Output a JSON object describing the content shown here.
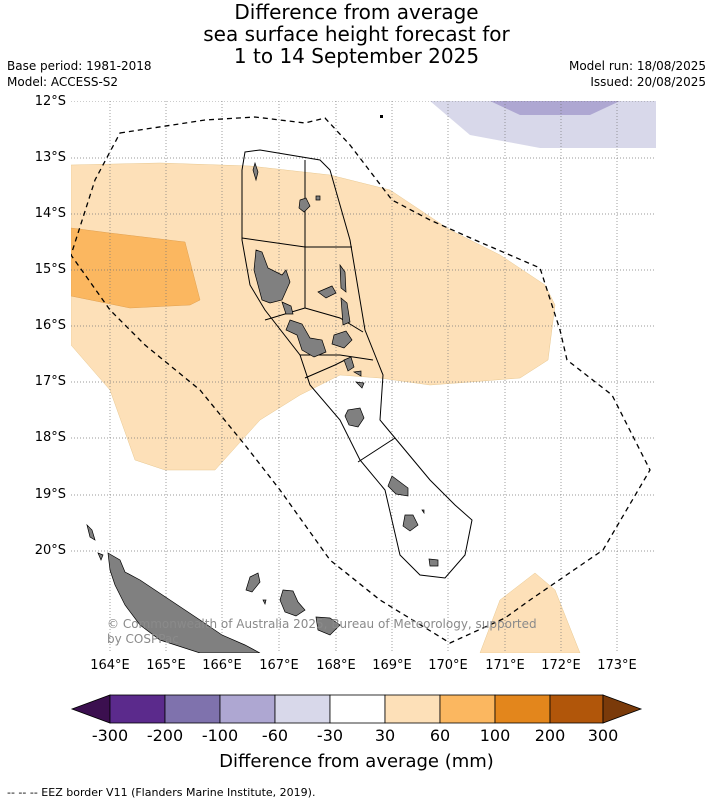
{
  "title": {
    "line1": "Difference from average",
    "line2": "sea surface height forecast for",
    "line3": "1 to 14 September 2025"
  },
  "meta": {
    "base_period": "Base period: 1981-2018",
    "model": "Model: ACCESS-S2",
    "model_run": "Model run: 18/08/2025",
    "issued": "Issued: 20/08/2025"
  },
  "axes": {
    "lat_labels": [
      "12°S",
      "13°S",
      "14°S",
      "15°S",
      "16°S",
      "17°S",
      "18°S",
      "19°S",
      "20°S"
    ],
    "lon_labels": [
      "164°E",
      "165°E",
      "166°E",
      "167°E",
      "168°E",
      "169°E",
      "170°E",
      "171°E",
      "172°E",
      "173°E"
    ]
  },
  "copyright": {
    "line1": "© Commonwealth of Australia 2025, Bureau of Meteorology, supported",
    "line2": "by COSPPac"
  },
  "colorbar": {
    "labels": [
      "-300",
      "-200",
      "-100",
      "-60",
      "-30",
      "30",
      "60",
      "100",
      "200",
      "300"
    ],
    "colors": [
      "#3b0f4f",
      "#5b2a8c",
      "#7f72ad",
      "#aea7d2",
      "#d8d8ea",
      "#ffffff",
      "#fde0b8",
      "#fbb760",
      "#e3861c",
      "#b1560a",
      "#7a3a0a"
    ],
    "title": "Difference from average (mm)"
  },
  "footer": "--  --  -- EEZ border V11 (Flanders Marine Institute, 2019)."
}
